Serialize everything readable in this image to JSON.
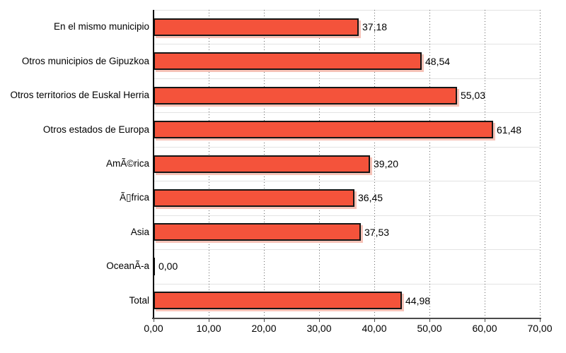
{
  "chart_data": {
    "type": "bar",
    "orientation": "horizontal",
    "title": "",
    "xlabel": "",
    "ylabel": "",
    "categories": [
      "En el mismo municipio",
      "Otros municipios de Gipuzkoa",
      "Otros territorios de Euskal Herria",
      "Otros estados de Europa",
      "AmÃ©rica",
      "Ã▯frica",
      "Asia",
      "OceanÃ-a",
      "Total"
    ],
    "values": [
      37.18,
      48.54,
      55.03,
      61.48,
      39.2,
      36.45,
      37.53,
      0.0,
      44.98
    ],
    "value_labels": [
      "37,18",
      "48,54",
      "55,03",
      "61,48",
      "39,20",
      "36,45",
      "37,53",
      "0,00",
      "44,98"
    ],
    "x_ticks": [
      "0,00",
      "10,00",
      "20,00",
      "30,00",
      "40,00",
      "50,00",
      "60,00",
      "70,00"
    ],
    "xlim": [
      0,
      70
    ],
    "grid": {
      "vertical": "dotted line at each 10-unit tick",
      "horizontal": "light solid separator at each category boundary"
    },
    "legend": "none",
    "colors": {
      "bar_fill": "#F4533B",
      "bar_border": "#151515",
      "bar_shadow": "#F6C3B8",
      "vgrid_dots": "#666666",
      "row_line": "#E3E3E3",
      "value_axis_line": "#4A4A4A",
      "category_axis_line": "#000000",
      "text": "#000000",
      "background": "#FFFFFF"
    }
  }
}
